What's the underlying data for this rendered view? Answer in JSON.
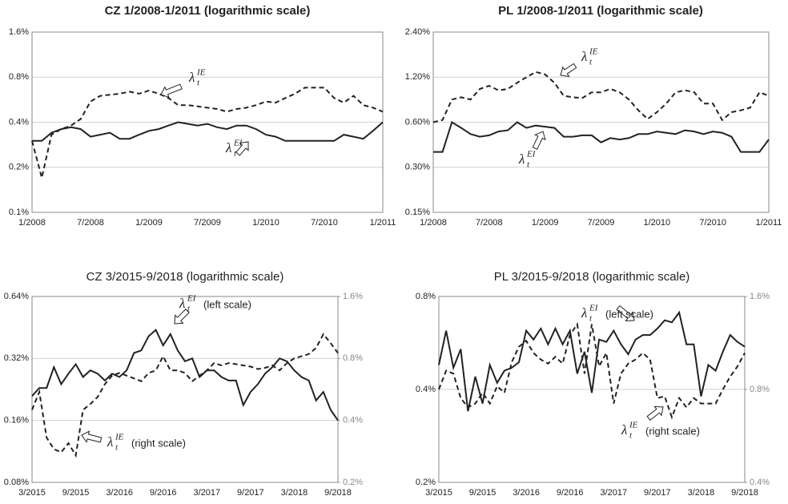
{
  "chart_data": [
    {
      "type": "line",
      "title": "CZ 1/2008-1/2011 (logarithmic scale)",
      "log_scale": true,
      "grid": true,
      "categories": [
        "1/2008",
        null,
        null,
        null,
        null,
        null,
        "7/2008",
        null,
        null,
        null,
        null,
        null,
        "1/2009",
        null,
        null,
        null,
        null,
        null,
        "7/2009",
        null,
        null,
        null,
        null,
        null,
        "1/2010",
        null,
        null,
        null,
        null,
        null,
        "7/2010",
        null,
        null,
        null,
        null,
        null,
        "1/2011"
      ],
      "ylim": [
        0.1,
        1.6
      ],
      "yticks": [
        {
          "value": 0.1,
          "label": "0.1%"
        },
        {
          "value": 0.2,
          "label": "0.2%"
        },
        {
          "value": 0.4,
          "label": "0.4%"
        },
        {
          "value": 0.8,
          "label": "0.8%"
        },
        {
          "value": 1.6,
          "label": "1.6%"
        }
      ],
      "series": [
        {
          "symbol": "λ",
          "sub": "t",
          "sup": "IE",
          "color": "#222222",
          "dashed": true,
          "values": [
            0.3,
            0.17,
            0.33,
            0.36,
            0.38,
            0.42,
            0.55,
            0.6,
            0.61,
            0.62,
            0.64,
            0.62,
            0.65,
            0.62,
            0.58,
            0.52,
            0.52,
            0.51,
            0.5,
            0.49,
            0.47,
            0.49,
            0.5,
            0.52,
            0.55,
            0.54,
            0.58,
            0.62,
            0.68,
            0.68,
            0.68,
            0.58,
            0.54,
            0.6,
            0.52,
            0.5,
            0.47
          ]
        },
        {
          "symbol": "λ",
          "sub": "t",
          "sup": "EI",
          "color": "#222222",
          "dashed": false,
          "values": [
            0.3,
            0.3,
            0.34,
            0.36,
            0.37,
            0.36,
            0.32,
            0.33,
            0.34,
            0.31,
            0.31,
            0.33,
            0.35,
            0.36,
            0.38,
            0.4,
            0.39,
            0.38,
            0.39,
            0.37,
            0.36,
            0.38,
            0.38,
            0.36,
            0.33,
            0.32,
            0.3,
            0.3,
            0.3,
            0.3,
            0.3,
            0.3,
            0.33,
            0.32,
            0.31,
            0.35,
            0.4
          ]
        }
      ]
    },
    {
      "type": "line",
      "title": "PL 1/2008-1/2011 (logarithmic scale)",
      "log_scale": true,
      "grid": true,
      "categories": [
        "1/2008",
        null,
        null,
        null,
        null,
        null,
        "7/2008",
        null,
        null,
        null,
        null,
        null,
        "1/2009",
        null,
        null,
        null,
        null,
        null,
        "7/2009",
        null,
        null,
        null,
        null,
        null,
        "1/2010",
        null,
        null,
        null,
        null,
        null,
        "7/2010",
        null,
        null,
        null,
        null,
        null,
        "1/2011"
      ],
      "ylim": [
        0.15,
        2.4
      ],
      "yticks": [
        {
          "value": 0.15,
          "label": "0.15%"
        },
        {
          "value": 0.3,
          "label": "0.30%"
        },
        {
          "value": 0.6,
          "label": "0.60%"
        },
        {
          "value": 1.2,
          "label": "1.20%"
        },
        {
          "value": 2.4,
          "label": "2.40%"
        }
      ],
      "series": [
        {
          "symbol": "λ",
          "sub": "t",
          "sup": "IE",
          "color": "#222222",
          "dashed": true,
          "values": [
            0.6,
            0.62,
            0.85,
            0.88,
            0.85,
            1.0,
            1.05,
            0.98,
            1.0,
            1.1,
            1.2,
            1.3,
            1.25,
            1.1,
            0.9,
            0.88,
            0.87,
            0.95,
            0.95,
            1.0,
            0.95,
            0.85,
            0.72,
            0.63,
            0.7,
            0.8,
            0.95,
            0.98,
            0.95,
            0.8,
            0.8,
            0.62,
            0.7,
            0.72,
            0.75,
            0.95,
            0.9
          ]
        },
        {
          "symbol": "λ",
          "sub": "t",
          "sup": "EI",
          "color": "#222222",
          "dashed": false,
          "values": [
            0.38,
            0.38,
            0.6,
            0.55,
            0.5,
            0.48,
            0.49,
            0.52,
            0.53,
            0.6,
            0.55,
            0.57,
            0.56,
            0.55,
            0.48,
            0.48,
            0.49,
            0.49,
            0.44,
            0.47,
            0.46,
            0.47,
            0.5,
            0.5,
            0.52,
            0.51,
            0.5,
            0.53,
            0.52,
            0.5,
            0.52,
            0.51,
            0.48,
            0.38,
            0.38,
            0.38,
            0.46
          ]
        }
      ]
    },
    {
      "type": "line",
      "title": "CZ 3/2015-9/2018 (logarithmic scale)",
      "log_scale": true,
      "grid": true,
      "categories": [
        "3/2015",
        null,
        null,
        null,
        null,
        null,
        "9/2015",
        null,
        null,
        null,
        null,
        null,
        "3/2016",
        null,
        null,
        null,
        null,
        null,
        "9/2016",
        null,
        null,
        null,
        null,
        null,
        "3/2017",
        null,
        null,
        null,
        null,
        null,
        "9/2017",
        null,
        null,
        null,
        null,
        null,
        "3/2018",
        null,
        null,
        null,
        null,
        null,
        "9/2018"
      ],
      "ylim": [
        0.08,
        0.64
      ],
      "yticks": [
        {
          "value": 0.08,
          "label": "0.08%"
        },
        {
          "value": 0.16,
          "label": "0.16%"
        },
        {
          "value": 0.32,
          "label": "0.32%"
        },
        {
          "value": 0.64,
          "label": "0.64%"
        }
      ],
      "y2lim": [
        0.2,
        1.6
      ],
      "y2ticks": [
        {
          "value": 0.2,
          "label": "0.2%"
        },
        {
          "value": 0.4,
          "label": "0.4%"
        },
        {
          "value": 0.8,
          "label": "0.8%"
        },
        {
          "value": 1.6,
          "label": "1.6%"
        }
      ],
      "series": [
        {
          "symbol": "λ",
          "sub": "t",
          "sup": "EI",
          "note": "(left scale)",
          "color": "#222222",
          "dashed": false,
          "values": [
            0.21,
            0.23,
            0.23,
            0.29,
            0.24,
            0.27,
            0.3,
            0.26,
            0.28,
            0.27,
            0.25,
            0.27,
            0.26,
            0.28,
            0.34,
            0.35,
            0.41,
            0.44,
            0.37,
            0.42,
            0.35,
            0.31,
            0.32,
            0.26,
            0.28,
            0.28,
            0.26,
            0.25,
            0.25,
            0.19,
            0.22,
            0.24,
            0.27,
            0.29,
            0.32,
            0.31,
            0.28,
            0.26,
            0.25,
            0.2,
            0.22,
            0.18,
            0.16
          ]
        },
        {
          "symbol": "λ",
          "sub": "t",
          "sup": "IE",
          "note": "(right scale)",
          "color": "#222222",
          "dashed": true,
          "axis": "y2",
          "values": [
            0.45,
            0.55,
            0.33,
            0.29,
            0.28,
            0.31,
            0.27,
            0.45,
            0.48,
            0.52,
            0.6,
            0.66,
            0.68,
            0.66,
            0.64,
            0.62,
            0.68,
            0.7,
            0.82,
            0.7,
            0.7,
            0.68,
            0.62,
            0.66,
            0.7,
            0.76,
            0.74,
            0.76,
            0.75,
            0.74,
            0.73,
            0.71,
            0.72,
            0.74,
            0.7,
            0.76,
            0.8,
            0.82,
            0.84,
            0.9,
            1.05,
            0.95,
            0.85
          ]
        }
      ]
    },
    {
      "type": "line",
      "title": "PL 3/2015-9/2018 (logarithmic scale)",
      "log_scale": true,
      "grid": true,
      "categories": [
        "3/2015",
        null,
        null,
        null,
        null,
        null,
        "9/2015",
        null,
        null,
        null,
        null,
        null,
        "3/2016",
        null,
        null,
        null,
        null,
        null,
        "9/2016",
        null,
        null,
        null,
        null,
        null,
        "3/2017",
        null,
        null,
        null,
        null,
        null,
        "9/2017",
        null,
        null,
        null,
        null,
        null,
        "3/2018",
        null,
        null,
        null,
        null,
        null,
        "9/2018"
      ],
      "ylim": [
        0.2,
        0.8
      ],
      "yticks": [
        {
          "value": 0.2,
          "label": "0.2%"
        },
        {
          "value": 0.4,
          "label": "0.4%"
        },
        {
          "value": 0.8,
          "label": "0.8%"
        }
      ],
      "y2lim": [
        0.4,
        1.6
      ],
      "y2ticks": [
        {
          "value": 0.4,
          "label": "0.4%"
        },
        {
          "value": 0.8,
          "label": "0.8%"
        },
        {
          "value": 1.6,
          "label": "1.6%"
        }
      ],
      "series": [
        {
          "symbol": "λ",
          "sub": "t",
          "sup": "EI",
          "note": "(left scale)",
          "color": "#222222",
          "dashed": false,
          "values": [
            0.48,
            0.62,
            0.47,
            0.54,
            0.34,
            0.44,
            0.36,
            0.48,
            0.42,
            0.46,
            0.47,
            0.49,
            0.62,
            0.58,
            0.63,
            0.56,
            0.63,
            0.56,
            0.62,
            0.45,
            0.53,
            0.39,
            0.58,
            0.57,
            0.62,
            0.56,
            0.52,
            0.58,
            0.6,
            0.6,
            0.63,
            0.67,
            0.66,
            0.71,
            0.56,
            0.56,
            0.38,
            0.48,
            0.46,
            0.53,
            0.6,
            0.57,
            0.55
          ]
        },
        {
          "symbol": "λ",
          "sub": "t",
          "sup": "IE",
          "note": "(right scale)",
          "color": "#222222",
          "dashed": true,
          "axis": "y2",
          "values": [
            0.8,
            0.92,
            0.9,
            0.75,
            0.7,
            0.72,
            0.78,
            0.72,
            0.82,
            0.78,
            0.98,
            1.1,
            1.15,
            1.05,
            1.0,
            0.97,
            1.02,
            0.97,
            1.2,
            1.3,
            0.9,
            1.3,
            0.95,
            1.05,
            0.72,
            0.9,
            0.97,
            1.0,
            1.05,
            1.0,
            0.75,
            0.76,
            0.65,
            0.75,
            0.7,
            0.75,
            0.72,
            0.72,
            0.72,
            0.8,
            0.88,
            0.95,
            1.05
          ]
        }
      ]
    }
  ]
}
